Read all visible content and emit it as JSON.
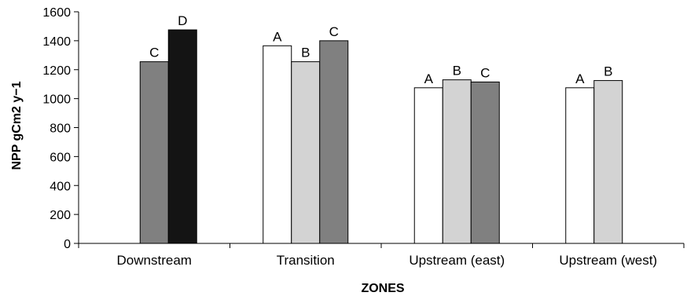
{
  "chart_data": {
    "type": "bar",
    "title": "",
    "xlabel": "ZONES",
    "ylabel": "NPP gCm2 y−1",
    "ylim": [
      0,
      1600
    ],
    "yticks": [
      0,
      200,
      400,
      600,
      800,
      1000,
      1200,
      1400,
      1600
    ],
    "grid": false,
    "categories": [
      "Downstream",
      "Transition",
      "Upstream (east)",
      "Upstream (west)"
    ],
    "groups": [
      {
        "category": "Downstream",
        "bars": [
          {
            "letter": "C",
            "value": 1255,
            "color": "#808080"
          },
          {
            "letter": "D",
            "value": 1475,
            "color": "#141414"
          }
        ]
      },
      {
        "category": "Transition",
        "bars": [
          {
            "letter": "A",
            "value": 1365,
            "color": "#ffffff"
          },
          {
            "letter": "B",
            "value": 1255,
            "color": "#d3d3d3"
          },
          {
            "letter": "C",
            "value": 1400,
            "color": "#808080"
          }
        ]
      },
      {
        "category": "Upstream (east)",
        "bars": [
          {
            "letter": "A",
            "value": 1075,
            "color": "#ffffff"
          },
          {
            "letter": "B",
            "value": 1130,
            "color": "#d3d3d3"
          },
          {
            "letter": "C",
            "value": 1115,
            "color": "#808080"
          }
        ]
      },
      {
        "category": "Upstream (west)",
        "bars": [
          {
            "letter": "A",
            "value": 1075,
            "color": "#ffffff"
          },
          {
            "letter": "B",
            "value": 1125,
            "color": "#d3d3d3"
          }
        ]
      }
    ]
  }
}
